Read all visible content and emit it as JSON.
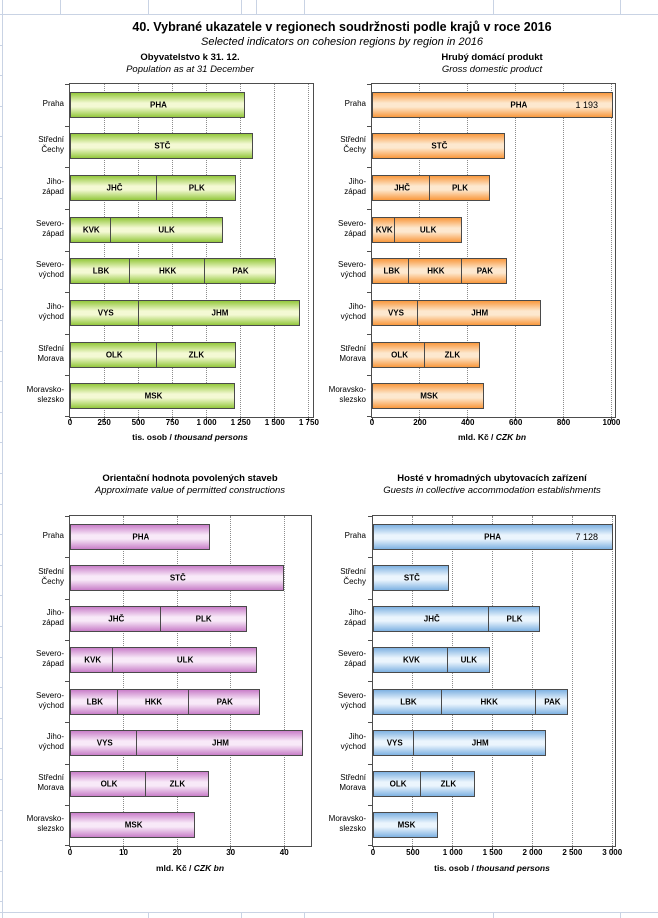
{
  "page": {
    "title": "40. Vybrané ukazatele v regionech soudržnosti podle krajů v roce 2016",
    "subtitle": "Selected indicators on cohesion regions by region in 2016"
  },
  "categories": [
    [
      "Praha"
    ],
    [
      "Střední",
      "Čechy"
    ],
    [
      "Jiho-",
      "západ"
    ],
    [
      "Severo-",
      "západ"
    ],
    [
      "Severo-",
      "východ"
    ],
    [
      "Jiho-",
      "východ"
    ],
    [
      "Střední",
      "Morava"
    ],
    [
      "Moravsko-",
      "slezsko"
    ]
  ],
  "chart_data": [
    {
      "type": "bar",
      "orientation": "horizontal",
      "stacked": true,
      "grid": "vertical-dotted",
      "title": "Obyvatelstvo k 31. 12.",
      "subtitle": "Population as at 31 December",
      "xlabel": "tis. osob /",
      "xlabel_en": "thousand persons",
      "xlim": [
        0,
        1780
      ],
      "tick_values": [
        0,
        250,
        500,
        750,
        1000,
        1250,
        1500,
        1750
      ],
      "tick_labels": [
        "0",
        "250",
        "500",
        "750",
        "1 000",
        "1 250",
        "1 500",
        "1 750"
      ],
      "colors": {
        "bar_edge": "#94c83d",
        "bar_center": "#f4f9d4",
        "bar_border": "#4a4a4a"
      },
      "rows": [
        {
          "segments": [
            {
              "code": "PHA",
              "value": 1281
            }
          ]
        },
        {
          "segments": [
            {
              "code": "STČ",
              "value": 1339
            }
          ]
        },
        {
          "segments": [
            {
              "code": "JHČ",
              "value": 638
            },
            {
              "code": "PLK",
              "value": 581
            }
          ]
        },
        {
          "segments": [
            {
              "code": "KVK",
              "value": 297
            },
            {
              "code": "ULK",
              "value": 821
            }
          ]
        },
        {
          "segments": [
            {
              "code": "LBK",
              "value": 440
            },
            {
              "code": "HKK",
              "value": 551
            },
            {
              "code": "PAK",
              "value": 517
            }
          ]
        },
        {
          "segments": [
            {
              "code": "VYS",
              "value": 509
            },
            {
              "code": "JHM",
              "value": 1179
            }
          ]
        },
        {
          "segments": [
            {
              "code": "OLK",
              "value": 634
            },
            {
              "code": "ZLK",
              "value": 584
            }
          ]
        },
        {
          "segments": [
            {
              "code": "MSK",
              "value": 1209
            }
          ]
        }
      ]
    },
    {
      "type": "bar",
      "orientation": "horizontal",
      "stacked": true,
      "grid": "vertical-dotted",
      "title": "Hrubý domácí produkt",
      "subtitle": "Gross domestic product",
      "xlabel": "mld. Kč /",
      "xlabel_en": "CZK bn",
      "xlim": [
        0,
        1015
      ],
      "tick_values": [
        0,
        200,
        400,
        600,
        800,
        1000
      ],
      "tick_labels": [
        "0",
        "200",
        "400",
        "600",
        "800",
        "1000"
      ],
      "colors": {
        "bar_edge": "#f9993e",
        "bar_center": "#fde8cf",
        "bar_border": "#4a4a4a"
      },
      "rows": [
        {
          "segments": [
            {
              "code": "PHA",
              "value": 1193,
              "clipped": true,
              "label_at": 0.6
            }
          ],
          "value_label": "1 193"
        },
        {
          "segments": [
            {
              "code": "STČ",
              "value": 555
            }
          ]
        },
        {
          "segments": [
            {
              "code": "JHČ",
              "value": 243
            },
            {
              "code": "PLK",
              "value": 249
            }
          ]
        },
        {
          "segments": [
            {
              "code": "KVK",
              "value": 94
            },
            {
              "code": "ULK",
              "value": 281
            }
          ]
        },
        {
          "segments": [
            {
              "code": "LBK",
              "value": 156
            },
            {
              "code": "HKK",
              "value": 222
            },
            {
              "code": "PAK",
              "value": 187
            }
          ]
        },
        {
          "segments": [
            {
              "code": "VYS",
              "value": 192
            },
            {
              "code": "JHM",
              "value": 516
            }
          ]
        },
        {
          "segments": [
            {
              "code": "OLK",
              "value": 222
            },
            {
              "code": "ZLK",
              "value": 228
            }
          ]
        },
        {
          "segments": [
            {
              "code": "MSK",
              "value": 469
            }
          ]
        }
      ]
    },
    {
      "type": "bar",
      "orientation": "horizontal",
      "stacked": true,
      "grid": "vertical-dotted",
      "title": "Orientační hodnota povolených staveb",
      "subtitle": "Approximate value of permitted constructions",
      "xlabel": "mld. Kč /",
      "xlabel_en": "CZK bn",
      "xlim": [
        0,
        45
      ],
      "tick_values": [
        0,
        10,
        20,
        30,
        40
      ],
      "tick_labels": [
        "0",
        "10",
        "20",
        "30",
        "40"
      ],
      "colors": {
        "bar_edge": "#c97fc9",
        "bar_center": "#f8e9f8",
        "bar_border": "#4a4a4a"
      },
      "rows": [
        {
          "segments": [
            {
              "code": "PHA",
              "value": 26.1
            }
          ]
        },
        {
          "segments": [
            {
              "code": "STČ",
              "value": 39.9
            }
          ]
        },
        {
          "segments": [
            {
              "code": "JHČ",
              "value": 16.9
            },
            {
              "code": "PLK",
              "value": 16.1
            }
          ]
        },
        {
          "segments": [
            {
              "code": "KVK",
              "value": 8.1
            },
            {
              "code": "ULK",
              "value": 26.8
            }
          ]
        },
        {
          "segments": [
            {
              "code": "LBK",
              "value": 8.9
            },
            {
              "code": "HKK",
              "value": 13.4
            },
            {
              "code": "PAK",
              "value": 13.2
            }
          ]
        },
        {
          "segments": [
            {
              "code": "VYS",
              "value": 12.6
            },
            {
              "code": "JHM",
              "value": 31.0
            }
          ]
        },
        {
          "segments": [
            {
              "code": "OLK",
              "value": 14.2
            },
            {
              "code": "ZLK",
              "value": 11.7
            }
          ]
        },
        {
          "segments": [
            {
              "code": "MSK",
              "value": 23.4
            }
          ]
        }
      ]
    },
    {
      "type": "bar",
      "orientation": "horizontal",
      "stacked": true,
      "grid": "vertical-dotted",
      "title": "Hosté v hromadných ubytovacích zařízení",
      "subtitle": "Guests in collective accommodation establishments",
      "xlabel": "tis. osob /",
      "xlabel_en": "thousand persons",
      "xlim": [
        0,
        3035
      ],
      "tick_values": [
        0,
        500,
        1000,
        1500,
        2000,
        2500,
        3000
      ],
      "tick_labels": [
        "0",
        "500",
        "1 000",
        "1 500",
        "2 000",
        "2 500",
        "3 000"
      ],
      "colors": {
        "bar_edge": "#7fb2e2",
        "bar_center": "#ebf5fd",
        "bar_border": "#4a4a4a"
      },
      "rows": [
        {
          "segments": [
            {
              "code": "PHA",
              "value": 7128,
              "clipped": true,
              "label_at": 0.49
            }
          ],
          "value_label": "7 128"
        },
        {
          "segments": [
            {
              "code": "STČ",
              "value": 950
            }
          ]
        },
        {
          "segments": [
            {
              "code": "JHČ",
              "value": 1450
            },
            {
              "code": "PLK",
              "value": 650
            }
          ]
        },
        {
          "segments": [
            {
              "code": "KVK",
              "value": 940
            },
            {
              "code": "ULK",
              "value": 525
            }
          ]
        },
        {
          "segments": [
            {
              "code": "LBK",
              "value": 865
            },
            {
              "code": "HKK",
              "value": 1185
            },
            {
              "code": "PAK",
              "value": 400
            }
          ]
        },
        {
          "segments": [
            {
              "code": "VYS",
              "value": 520
            },
            {
              "code": "JHM",
              "value": 1650
            }
          ]
        },
        {
          "segments": [
            {
              "code": "OLK",
              "value": 605
            },
            {
              "code": "ZLK",
              "value": 680
            }
          ]
        },
        {
          "segments": [
            {
              "code": "MSK",
              "value": 815
            }
          ]
        }
      ]
    }
  ]
}
